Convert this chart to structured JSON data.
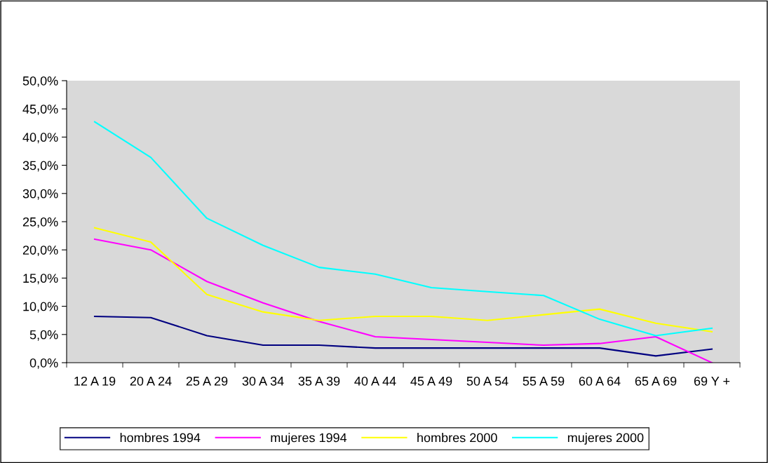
{
  "chart_data": {
    "type": "line",
    "categories": [
      "12 A 19",
      "20 A 24",
      "25 A 29",
      "30 A 34",
      "35 A 39",
      "40 A 44",
      "45 A 49",
      "50 A 54",
      "55 A 59",
      "60 A 64",
      "65 A 69",
      "69 Y +"
    ],
    "series": [
      {
        "name": "hombres 1994",
        "color": "#000080",
        "values": [
          8.2,
          8.0,
          4.8,
          3.1,
          3.1,
          2.6,
          2.6,
          2.6,
          2.6,
          2.6,
          1.2,
          2.4
        ]
      },
      {
        "name": "mujeres 1994",
        "color": "#ff00ff",
        "values": [
          21.9,
          20.0,
          14.4,
          10.6,
          7.3,
          4.6,
          4.1,
          3.6,
          3.1,
          3.4,
          4.6,
          0.0
        ]
      },
      {
        "name": "hombres 2000",
        "color": "#ffff00",
        "values": [
          23.9,
          21.4,
          12.1,
          9.0,
          7.5,
          8.2,
          8.2,
          7.5,
          8.5,
          9.5,
          7.0,
          5.5
        ]
      },
      {
        "name": "mujeres 2000",
        "color": "#00ffff",
        "values": [
          42.7,
          36.4,
          25.6,
          20.8,
          16.9,
          15.7,
          13.3,
          12.6,
          11.9,
          7.7,
          4.8,
          6.1
        ]
      }
    ],
    "ylim": [
      0,
      50
    ],
    "yticks": [
      {
        "value": 0,
        "label": "0,0%"
      },
      {
        "value": 5,
        "label": "5,0%"
      },
      {
        "value": 10,
        "label": "10,0%"
      },
      {
        "value": 15,
        "label": "15,0%"
      },
      {
        "value": 20,
        "label": "20,0%"
      },
      {
        "value": 25,
        "label": "25,0%"
      },
      {
        "value": 30,
        "label": "30,0%"
      },
      {
        "value": 35,
        "label": "35,0%"
      },
      {
        "value": 40,
        "label": "40,0%"
      },
      {
        "value": 45,
        "label": "45,0%"
      },
      {
        "value": 50,
        "label": "50,0%"
      }
    ],
    "grid": false,
    "legend": "bottom",
    "marker": "none",
    "line_style": "solid"
  }
}
